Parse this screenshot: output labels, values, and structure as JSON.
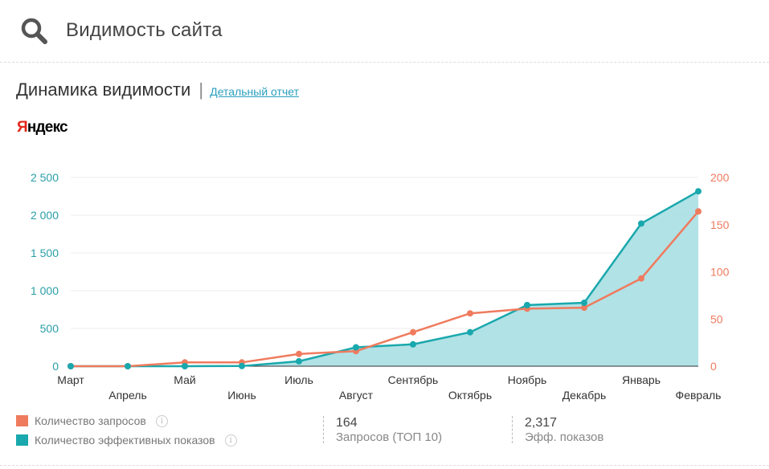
{
  "header": {
    "title": "Видимость сайта",
    "icon": "search-icon"
  },
  "section": {
    "title": "Динамика видимости",
    "separator": "|",
    "report_link": "Детальный отчет"
  },
  "engine": {
    "logo_first": "Я",
    "logo_rest": "ндекс"
  },
  "colors": {
    "requests": "#ef7b5e",
    "impressions": "#19a8ad",
    "area_fill": "#a8dfe3",
    "left_axis": "#2a9fa8",
    "right_axis": "#ef7b5e"
  },
  "chart_data": {
    "type": "line",
    "categories": [
      "Март",
      "Апрель",
      "Май",
      "Июнь",
      "Июль",
      "Август",
      "Сентябрь",
      "Октябрь",
      "Ноябрь",
      "Декабрь",
      "Январь",
      "Февраль"
    ],
    "series": [
      {
        "name": "Количество запросов",
        "axis": "right",
        "values": [
          0,
          0,
          4,
          4,
          13,
          16,
          36,
          56,
          61,
          62,
          93,
          164
        ]
      },
      {
        "name": "Количество эффективных показов",
        "axis": "left",
        "area": true,
        "values": [
          0,
          0,
          0,
          2,
          65,
          250,
          290,
          450,
          810,
          840,
          1890,
          2317
        ]
      }
    ],
    "left_axis": {
      "ticks": [
        "0",
        "500",
        "1 000",
        "1 500",
        "2 000",
        "2 500"
      ],
      "tick_values": [
        0,
        500,
        1000,
        1500,
        2000,
        2500
      ],
      "ylim": [
        0,
        2500
      ]
    },
    "right_axis": {
      "ticks": [
        "0",
        "50",
        "100",
        "150",
        "200"
      ],
      "tick_values": [
        0,
        50,
        100,
        150,
        200
      ],
      "ylim": [
        0,
        200
      ]
    },
    "grid": true,
    "legend": "bottom-left"
  },
  "legend": {
    "items": [
      {
        "label": "Количество запросов",
        "color": "#ef7b5e"
      },
      {
        "label": "Количество эффективных показов",
        "color": "#19a8ad"
      }
    ],
    "info_symbol": "i"
  },
  "stats": [
    {
      "value": "164",
      "label": "Запросов (ТОП 10)"
    },
    {
      "value": "2,317",
      "label": "Эфф. показов"
    }
  ]
}
